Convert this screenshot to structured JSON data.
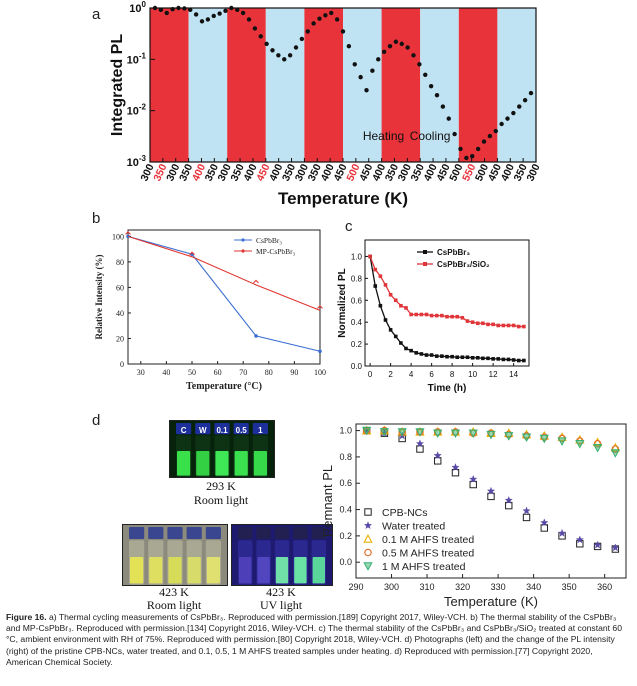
{
  "panels": {
    "a": {
      "label": "a",
      "ylabel": "Integrated PL",
      "xlabel": "Temperature (K)",
      "annotations": {
        "heating": "Heating",
        "cooling": "Cooling"
      },
      "yticks": [
        "10^0",
        "10^-1",
        "10^-2",
        "10^-3"
      ],
      "yticks_display": [
        {
          "base": "10",
          "exp": "0"
        },
        {
          "base": "10",
          "exp": "-1"
        },
        {
          "base": "10",
          "exp": "-2"
        },
        {
          "base": "10",
          "exp": "-3"
        }
      ],
      "xtick_labels": [
        "300",
        "350",
        "300",
        "350",
        "400",
        "350",
        "300",
        "350",
        "400",
        "450",
        "400",
        "350",
        "300",
        "350",
        "400",
        "450",
        "500",
        "450",
        "400",
        "350",
        "300",
        "350",
        "400",
        "450",
        "500",
        "550",
        "500",
        "450",
        "400",
        "350",
        "300"
      ],
      "xtick_highlight": [
        1,
        4,
        9,
        16,
        25
      ],
      "colors": {
        "heating": "#e8333a",
        "cooling": "#bfe3f2",
        "marker": "#111111",
        "highlight": "#e8333a"
      }
    },
    "b": {
      "label": "b",
      "ylabel": "Relative Intensity (%)",
      "xlabel": "Temperature (°C)",
      "legend": [
        "CsPbBr₃",
        "MP-CsPbBr₃"
      ],
      "xticks": [
        "30",
        "40",
        "50",
        "60",
        "70",
        "80",
        "90",
        "100"
      ],
      "yticks": [
        "0",
        "20",
        "40",
        "60",
        "80",
        "100"
      ]
    },
    "c": {
      "label": "c",
      "ylabel": "Normalized PL",
      "xlabel": "Time (h)",
      "legend": [
        "CsPbBr₃",
        "CsPbBr₃/SiO₂"
      ],
      "xticks": [
        "0",
        "2",
        "4",
        "6",
        "8",
        "10",
        "12",
        "14"
      ],
      "yticks": [
        "0.0",
        "0.2",
        "0.4",
        "0.6",
        "0.8",
        "1.0"
      ]
    },
    "d": {
      "label": "d",
      "photo_labels": {
        "top_temp": "293 K",
        "top_light": "Room light",
        "left_temp": "423 K",
        "left_light": "Room light",
        "right_temp": "423 K",
        "right_light": "UV light"
      },
      "vial_caps": [
        "C",
        "W",
        "0.1",
        "0.5",
        "1"
      ],
      "ylabel": "Remnant PL",
      "xlabel": "Temperature (K)",
      "xticks": [
        "290",
        "300",
        "310",
        "320",
        "330",
        "340",
        "350",
        "360"
      ],
      "yticks": [
        "0.0",
        "0.2",
        "0.4",
        "0.6",
        "0.8",
        "1.0"
      ],
      "legend": [
        "CPB-NCs",
        "Water treated",
        "0.1 M AHFS treated",
        "0.5 M AHFS treated",
        "1 M AHFS treated"
      ]
    }
  },
  "chart_data": [
    {
      "panel": "a",
      "type": "scatter",
      "ylabel": "Integrated PL",
      "xlabel": "Temperature (K)",
      "y_scale": "log",
      "ylim": [
        0.001,
        1
      ],
      "cycles": [
        {
          "segment": "heating",
          "from_K": 300,
          "to_K": 350
        },
        {
          "segment": "cooling",
          "from_K": 350,
          "to_K": 300
        },
        {
          "segment": "heating",
          "from_K": 300,
          "to_K": 400
        },
        {
          "segment": "cooling",
          "from_K": 400,
          "to_K": 300
        },
        {
          "segment": "heating",
          "from_K": 300,
          "to_K": 450
        },
        {
          "segment": "cooling",
          "from_K": 450,
          "to_K": 300
        },
        {
          "segment": "heating",
          "from_K": 300,
          "to_K": 500
        },
        {
          "segment": "cooling",
          "from_K": 500,
          "to_K": 300
        },
        {
          "segment": "heating",
          "from_K": 300,
          "to_K": 550
        },
        {
          "segment": "cooling",
          "from_K": 550,
          "to_K": 300
        }
      ],
      "series": [
        {
          "values": [
            1.0,
            0.92,
            0.8,
            0.95,
            1.0,
            0.98,
            0.92,
            0.75,
            0.55,
            0.6,
            0.7,
            0.78,
            0.88,
            1.0,
            0.92,
            0.8,
            0.6,
            0.4,
            0.28,
            0.2,
            0.15,
            0.12,
            0.1,
            0.12,
            0.17,
            0.25,
            0.35,
            0.5,
            0.62,
            0.72,
            0.8,
            0.6,
            0.35,
            0.18,
            0.08,
            0.045,
            0.025,
            0.06,
            0.1,
            0.14,
            0.18,
            0.22,
            0.2,
            0.17,
            0.12,
            0.08,
            0.05,
            0.03,
            0.02,
            0.012,
            0.007,
            0.0035,
            0.0018,
            0.0012,
            0.0013,
            0.0018,
            0.0025,
            0.0032,
            0.004,
            0.0055,
            0.007,
            0.009,
            0.012,
            0.016,
            0.022
          ]
        }
      ]
    },
    {
      "panel": "b",
      "type": "line",
      "xlabel": "Temperature (°C)",
      "ylabel": "Relative Intensity (%)",
      "xlim": [
        25,
        100
      ],
      "ylim": [
        0,
        105
      ],
      "series": [
        {
          "name": "CsPbBr₃",
          "color": "#3b6fd1",
          "x": [
            25,
            50,
            75,
            100
          ],
          "y": [
            100,
            86,
            22,
            10
          ]
        },
        {
          "name": "MP-CsPbBr₃",
          "color": "#e0362f",
          "x": [
            25,
            50,
            75,
            100
          ],
          "y": [
            100,
            84,
            62,
            42
          ]
        }
      ]
    },
    {
      "panel": "c",
      "type": "line",
      "xlabel": "Time (h)",
      "ylabel": "Normalized PL",
      "xlim": [
        -0.5,
        15.5
      ],
      "ylim": [
        0,
        1.15
      ],
      "series": [
        {
          "name": "CsPbBr₃",
          "color": "#111111",
          "x": [
            0,
            0.5,
            1,
            1.5,
            2,
            2.5,
            3,
            3.5,
            4,
            4.5,
            5,
            5.5,
            6,
            6.5,
            7,
            7.5,
            8,
            8.5,
            9,
            9.5,
            10,
            10.5,
            11,
            11.5,
            12,
            12.5,
            13,
            13.5,
            14,
            14.5,
            15
          ],
          "y": [
            1.0,
            0.73,
            0.55,
            0.42,
            0.33,
            0.27,
            0.21,
            0.16,
            0.14,
            0.12,
            0.11,
            0.1,
            0.1,
            0.09,
            0.09,
            0.085,
            0.085,
            0.08,
            0.08,
            0.08,
            0.075,
            0.075,
            0.07,
            0.07,
            0.065,
            0.065,
            0.06,
            0.06,
            0.055,
            0.05,
            0.05
          ]
        },
        {
          "name": "CsPbBr₃/SiO₂",
          "color": "#e0363a",
          "x": [
            0,
            0.5,
            1,
            1.5,
            2,
            2.5,
            3,
            3.5,
            4,
            4.5,
            5,
            5.5,
            6,
            6.5,
            7,
            7.5,
            8,
            8.5,
            9,
            9.5,
            10,
            10.5,
            11,
            11.5,
            12,
            12.5,
            13,
            13.5,
            14,
            14.5,
            15
          ],
          "y": [
            1.0,
            0.88,
            0.82,
            0.74,
            0.65,
            0.6,
            0.55,
            0.53,
            0.47,
            0.47,
            0.47,
            0.47,
            0.46,
            0.46,
            0.46,
            0.45,
            0.45,
            0.45,
            0.44,
            0.41,
            0.4,
            0.39,
            0.39,
            0.38,
            0.38,
            0.37,
            0.37,
            0.37,
            0.37,
            0.36,
            0.36
          ]
        }
      ]
    },
    {
      "panel": "d",
      "type": "scatter",
      "xlabel": "Temperature (K)",
      "ylabel": "Remnant PL",
      "xlim": [
        290,
        366
      ],
      "ylim": [
        -0.12,
        1.05
      ],
      "x": [
        293,
        298,
        303,
        308,
        313,
        318,
        323,
        328,
        333,
        338,
        343,
        348,
        353,
        358,
        363
      ],
      "series": [
        {
          "name": "CPB-NCs",
          "color": "#222222",
          "marker": "square",
          "y": [
            1.0,
            0.98,
            0.94,
            0.86,
            0.77,
            0.68,
            0.59,
            0.5,
            0.43,
            0.34,
            0.26,
            0.2,
            0.14,
            0.12,
            0.1
          ]
        },
        {
          "name": "Water treated",
          "color": "#5a4aa6",
          "marker": "star",
          "y": [
            1.0,
            0.98,
            0.96,
            0.9,
            0.81,
            0.72,
            0.63,
            0.54,
            0.47,
            0.39,
            0.3,
            0.22,
            0.17,
            0.13,
            0.11
          ]
        },
        {
          "name": "0.1 M AHFS treated",
          "color": "#e8b000",
          "marker": "triangle-up",
          "y": [
            1.0,
            1.0,
            0.99,
            0.99,
            0.99,
            0.99,
            0.99,
            0.98,
            0.98,
            0.97,
            0.96,
            0.95,
            0.93,
            0.91,
            0.87
          ]
        },
        {
          "name": "0.5 M AHFS treated",
          "color": "#e0702a",
          "marker": "circle",
          "y": [
            1.0,
            1.0,
            0.99,
            0.99,
            0.99,
            0.99,
            0.98,
            0.98,
            0.97,
            0.96,
            0.95,
            0.94,
            0.92,
            0.9,
            0.86
          ]
        },
        {
          "name": "1 M AHFS treated",
          "color": "#35b070",
          "marker": "triangle-down",
          "y": [
            1.0,
            0.99,
            0.99,
            0.99,
            0.98,
            0.98,
            0.98,
            0.97,
            0.96,
            0.95,
            0.94,
            0.92,
            0.9,
            0.87,
            0.83
          ]
        }
      ]
    }
  ],
  "caption": {
    "fig_label": "Figure 16.",
    "text": "a) Thermal cycling measurements of CsPbBr₃. Reproduced with permission.[189] Copyright 2017, Wiley-VCH. b) The thermal stability of the CsPbBr₃ and MP-CsPbBr₃. Reproduced with permission.[134] Copyright 2016, Wiley-VCH. c) The thermal stability of the CsPbBr₃ and CsPbBr₃/SiO₂ treated at constant 60 °C, ambient environment with RH of 75%. Reproduced with permission.[80] Copyright 2018, Wiley-VCH. d) Photographs (left) and the change of the PL intensity (right) of the pristine CPB-NCs, water treated, and 0.1, 0.5, 1 M AHFS treated samples under heating. d) Reproduced with permission.[77] Copyright 2020, American Chemical Society."
  }
}
